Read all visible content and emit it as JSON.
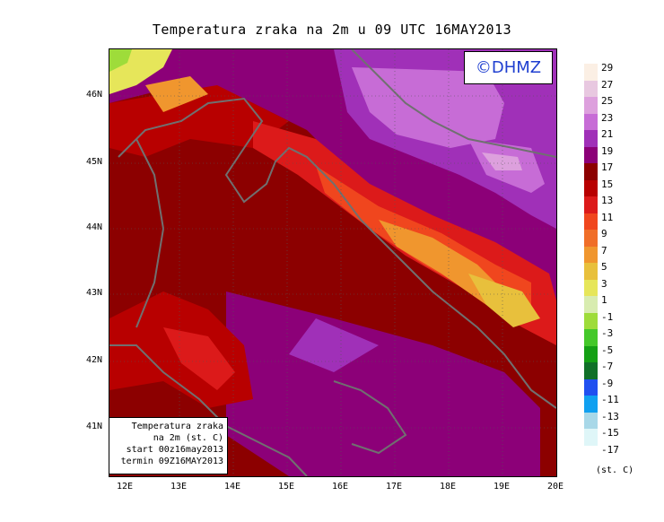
{
  "title": "Temperatura zraka na 2m u 09 UTC 16MAY2013",
  "watermark": "©DHMZ",
  "info": {
    "line1": "Temperatura zraka",
    "line2": "na 2m (st. C)",
    "line3": "start 00z16may2013",
    "line4": "termin 09Z16MAY2013"
  },
  "lat_labels": [
    "46N",
    "45N",
    "44N",
    "43N",
    "42N",
    "41N"
  ],
  "lon_labels": [
    "12E",
    "13E",
    "14E",
    "15E",
    "16E",
    "17E",
    "18E",
    "19E",
    "20E"
  ],
  "colorbar": {
    "labels": [
      "29",
      "27",
      "25",
      "23",
      "21",
      "19",
      "17",
      "15",
      "13",
      "11",
      "9",
      "7",
      "5",
      "3",
      "1",
      "-1",
      "-3",
      "-5",
      "-7",
      "-9",
      "-11",
      "-13",
      "-15",
      "-17"
    ],
    "colors": [
      "#fbefe4",
      "#e8c8e0",
      "#dda0dd",
      "#c76cd6",
      "#a030b8",
      "#8c0078",
      "#8c0000",
      "#b80000",
      "#dc1a1a",
      "#f0461e",
      "#f06e28",
      "#f0962e",
      "#e8c03c",
      "#e6e65a",
      "#d8ecb0",
      "#9edc3a",
      "#44c82a",
      "#14a014",
      "#107028",
      "#2050f0",
      "#10a0f0",
      "#a8d8e8",
      "#dff6f8"
    ],
    "unit": "(st. C)"
  },
  "legend_regions": {
    "colors": {
      "c15": "#b80000",
      "c17": "#8c0000",
      "c19": "#8c0078",
      "c21": "#a030b8",
      "c23": "#c76cd6",
      "c25": "#dda0dd",
      "c13": "#dc1a1a",
      "c11": "#f0461e",
      "c9": "#f06e28",
      "c7": "#f0962e",
      "c5": "#e8c03c",
      "c3": "#e6e65a",
      "c1": "#d8ecb0"
    }
  }
}
